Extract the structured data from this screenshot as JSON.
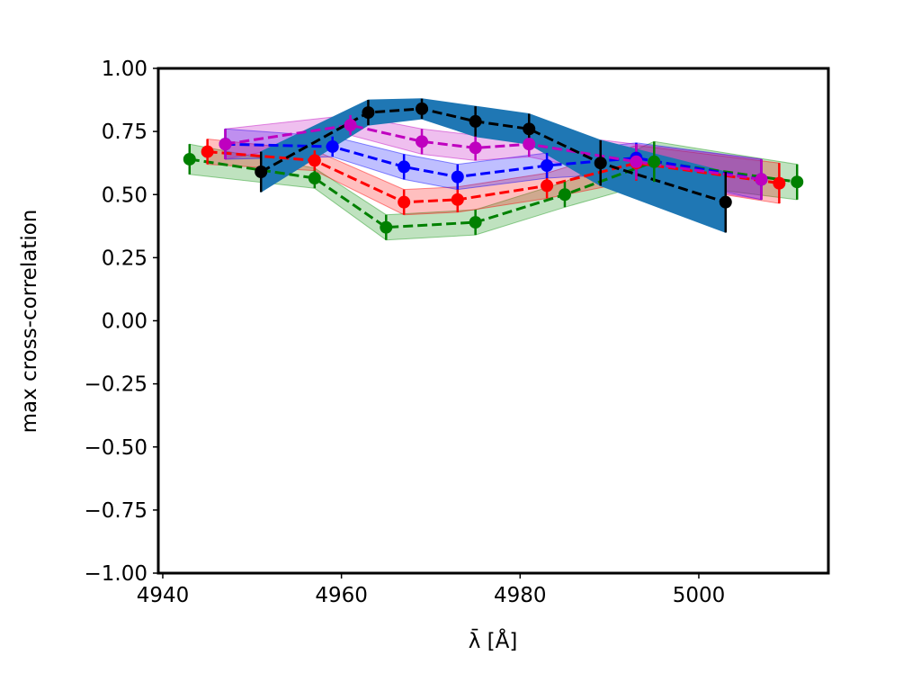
{
  "chart_data": {
    "type": "line",
    "title": "",
    "xlabel": "λ̄ [Å]",
    "ylabel": "max cross-correlation",
    "xlim": [
      4939.5,
      5014.5
    ],
    "ylim": [
      -1.0,
      1.0
    ],
    "xticks": [
      4940,
      4960,
      4980,
      5000
    ],
    "xtick_labels": [
      "4940",
      "4960",
      "4980",
      "5000"
    ],
    "yticks": [
      1.0,
      0.75,
      0.5,
      0.25,
      0.0,
      -0.25,
      -0.5,
      -0.75,
      -1.0
    ],
    "ytick_labels": [
      "1.00",
      "0.75",
      "0.50",
      "0.25",
      "0.00",
      "−0.25",
      "−0.50",
      "−0.75",
      "−1.00"
    ],
    "grid": false,
    "legend": "none",
    "series": [
      {
        "color": "#008000",
        "band_color": "#2ca02c",
        "band_opacity": 0.3,
        "x": [
          4943,
          4957,
          4965,
          4975,
          4985,
          4995,
          5011
        ],
        "y": [
          0.64,
          0.565,
          0.37,
          0.39,
          0.5,
          0.63,
          0.55
        ],
        "err": [
          0.06,
          0.04,
          0.05,
          0.05,
          0.05,
          0.08,
          0.07
        ]
      },
      {
        "color": "#ff0000",
        "band_color": "#ff0000",
        "band_opacity": 0.25,
        "x": [
          4945,
          4957,
          4967,
          4973,
          4983,
          4993,
          5009
        ],
        "y": [
          0.67,
          0.635,
          0.47,
          0.48,
          0.535,
          0.625,
          0.545
        ],
        "err": [
          0.05,
          0.04,
          0.05,
          0.05,
          0.05,
          0.07,
          0.08
        ]
      },
      {
        "color": "#0000ff",
        "band_color": "#0000ff",
        "band_opacity": 0.25,
        "x": [
          4947,
          4959,
          4967,
          4973,
          4983,
          4993,
          5007
        ],
        "y": [
          0.7,
          0.69,
          0.61,
          0.57,
          0.615,
          0.645,
          0.56
        ],
        "err": [
          0.06,
          0.04,
          0.05,
          0.05,
          0.05,
          0.06,
          0.08
        ]
      },
      {
        "color": "#bf00bf",
        "band_color": "#bf00bf",
        "band_opacity": 0.25,
        "x": [
          4947,
          4961,
          4969,
          4975,
          4981,
          4993,
          5007
        ],
        "y": [
          0.7,
          0.775,
          0.71,
          0.685,
          0.7,
          0.63,
          0.56
        ],
        "err": [
          0.06,
          0.04,
          0.05,
          0.05,
          0.05,
          0.07,
          0.08
        ]
      },
      {
        "color": "#000000",
        "band_color": "#1f77b4",
        "band_opacity": 1.0,
        "x": [
          4951,
          4963,
          4969,
          4975,
          4981,
          4989,
          5003
        ],
        "y": [
          0.59,
          0.825,
          0.84,
          0.79,
          0.76,
          0.625,
          0.47
        ],
        "err": [
          0.08,
          0.05,
          0.04,
          0.06,
          0.06,
          0.09,
          0.12
        ]
      }
    ]
  }
}
